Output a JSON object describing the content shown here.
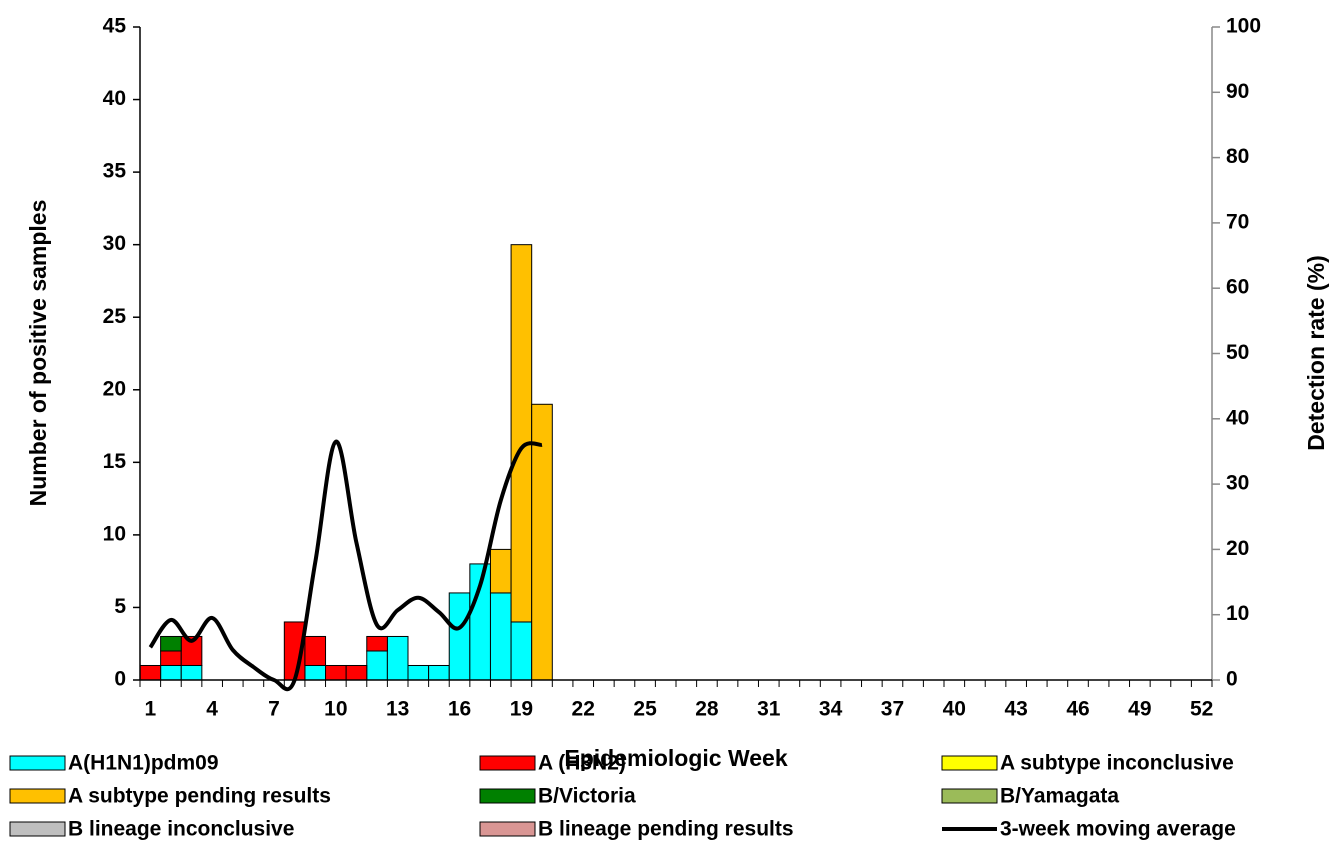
{
  "chart_data": {
    "type": "bar",
    "stacked": true,
    "x_label": "Epidemiologic Week",
    "y_label": "Number of positive samples",
    "y2_label": "Detection rate (%)",
    "categories": [
      1,
      null,
      null,
      4,
      null,
      null,
      7,
      null,
      null,
      10,
      null,
      null,
      13,
      null,
      null,
      16,
      null,
      null,
      19,
      null,
      null,
      22,
      null,
      null,
      25,
      null,
      null,
      28,
      null,
      null,
      31,
      null,
      null,
      34,
      null,
      null,
      37,
      null,
      null,
      40,
      null,
      null,
      43,
      null,
      null,
      46,
      null,
      null,
      49,
      null,
      null,
      52
    ],
    "ylim": [
      0,
      45
    ],
    "yticks": [
      0,
      5,
      10,
      15,
      20,
      25,
      30,
      35,
      40,
      45
    ],
    "y2lim": [
      0,
      100
    ],
    "y2ticks": [
      0,
      10,
      20,
      30,
      40,
      50,
      60,
      70,
      80,
      90,
      100
    ],
    "legend": "bottom",
    "series": [
      {
        "name": "A(H1N1)pdm09",
        "color": "#00ffff",
        "values": [
          0,
          1,
          1,
          0,
          0,
          0,
          0,
          0,
          1,
          0,
          0,
          2,
          3,
          1,
          1,
          6,
          8,
          6,
          4,
          0,
          null,
          null,
          null,
          null,
          null,
          null,
          null,
          null,
          null,
          null,
          null,
          null,
          null,
          null,
          null,
          null,
          null,
          null,
          null,
          null,
          null,
          null,
          null,
          null,
          null,
          null,
          null,
          null,
          null,
          null,
          null,
          null
        ]
      },
      {
        "name": "A (H3N2)",
        "color": "#ff0000",
        "values": [
          1,
          1,
          2,
          0,
          0,
          0,
          0,
          4,
          2,
          1,
          1,
          1,
          0,
          0,
          0,
          0,
          0,
          0,
          0,
          0,
          null,
          null,
          null,
          null,
          null,
          null,
          null,
          null,
          null,
          null,
          null,
          null,
          null,
          null,
          null,
          null,
          null,
          null,
          null,
          null,
          null,
          null,
          null,
          null,
          null,
          null,
          null,
          null,
          null,
          null,
          null,
          null
        ]
      },
      {
        "name": "A subtype inconclusive",
        "color": "#ffff00",
        "values": [
          0,
          0,
          0,
          0,
          0,
          0,
          0,
          0,
          0,
          0,
          0,
          0,
          0,
          0,
          0,
          0,
          0,
          0,
          0,
          0,
          null,
          null,
          null,
          null,
          null,
          null,
          null,
          null,
          null,
          null,
          null,
          null,
          null,
          null,
          null,
          null,
          null,
          null,
          null,
          null,
          null,
          null,
          null,
          null,
          null,
          null,
          null,
          null,
          null,
          null,
          null,
          null
        ]
      },
      {
        "name": "A subtype pending results",
        "color": "#ffc000",
        "values": [
          0,
          0,
          0,
          0,
          0,
          0,
          0,
          0,
          0,
          0,
          0,
          0,
          0,
          0,
          0,
          0,
          0,
          3,
          26,
          19,
          null,
          null,
          null,
          null,
          null,
          null,
          null,
          null,
          null,
          null,
          null,
          null,
          null,
          null,
          null,
          null,
          null,
          null,
          null,
          null,
          null,
          null,
          null,
          null,
          null,
          null,
          null,
          null,
          null,
          null,
          null,
          null
        ]
      },
      {
        "name": "B/Victoria",
        "color": "#008000",
        "values": [
          0,
          1,
          0,
          0,
          0,
          0,
          0,
          0,
          0,
          0,
          0,
          0,
          0,
          0,
          0,
          0,
          0,
          0,
          0,
          0,
          null,
          null,
          null,
          null,
          null,
          null,
          null,
          null,
          null,
          null,
          null,
          null,
          null,
          null,
          null,
          null,
          null,
          null,
          null,
          null,
          null,
          null,
          null,
          null,
          null,
          null,
          null,
          null,
          null,
          null,
          null,
          null
        ]
      },
      {
        "name": "B/Yamagata",
        "color": "#9bbb59",
        "values": [
          0,
          0,
          0,
          0,
          0,
          0,
          0,
          0,
          0,
          0,
          0,
          0,
          0,
          0,
          0,
          0,
          0,
          0,
          0,
          0,
          null,
          null,
          null,
          null,
          null,
          null,
          null,
          null,
          null,
          null,
          null,
          null,
          null,
          null,
          null,
          null,
          null,
          null,
          null,
          null,
          null,
          null,
          null,
          null,
          null,
          null,
          null,
          null,
          null,
          null,
          null,
          null
        ]
      },
      {
        "name": "B lineage inconclusive",
        "color": "#bfbfbf",
        "values": [
          0,
          0,
          0,
          0,
          0,
          0,
          0,
          0,
          0,
          0,
          0,
          0,
          0,
          0,
          0,
          0,
          0,
          0,
          0,
          0,
          null,
          null,
          null,
          null,
          null,
          null,
          null,
          null,
          null,
          null,
          null,
          null,
          null,
          null,
          null,
          null,
          null,
          null,
          null,
          null,
          null,
          null,
          null,
          null,
          null,
          null,
          null,
          null,
          null,
          null,
          null,
          null
        ]
      },
      {
        "name": "B lineage pending results",
        "color": "#d99694",
        "values": [
          0,
          0,
          0,
          0,
          0,
          0,
          0,
          0,
          0,
          0,
          0,
          0,
          0,
          0,
          0,
          0,
          0,
          0,
          0,
          0,
          null,
          null,
          null,
          null,
          null,
          null,
          null,
          null,
          null,
          null,
          null,
          null,
          null,
          null,
          null,
          null,
          null,
          null,
          null,
          null,
          null,
          null,
          null,
          null,
          null,
          null,
          null,
          null,
          null,
          null,
          null,
          null
        ]
      },
      {
        "name": "3-week moving average",
        "color": "#000000",
        "type": "line",
        "axis": "y2",
        "values": [
          5,
          9.2,
          6,
          9.5,
          4.6,
          2,
          0,
          0,
          18,
          36.5,
          21,
          8.4,
          10.7,
          12.6,
          10.4,
          8,
          14.5,
          27.5,
          35.5,
          36,
          null,
          null,
          null,
          null,
          null,
          null,
          null,
          null,
          null,
          null,
          null,
          null,
          null,
          null,
          null,
          null,
          null,
          null,
          null,
          null,
          null,
          null,
          null,
          null,
          null,
          null,
          null,
          null,
          null,
          null,
          null,
          null
        ]
      }
    ]
  }
}
